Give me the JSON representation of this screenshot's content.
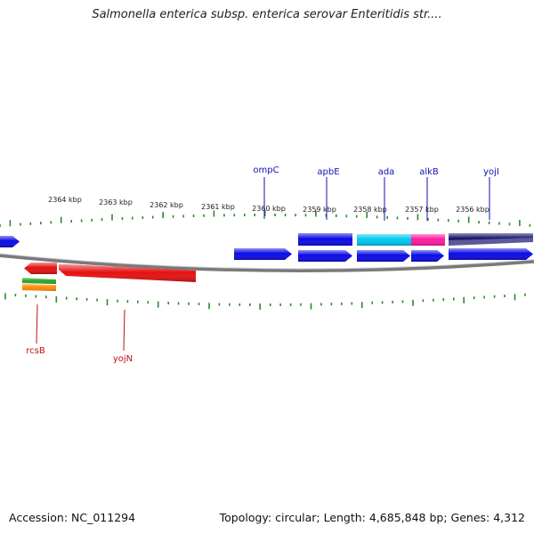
{
  "title": "Salmonella enterica subsp. enterica serovar Enteritidis str....",
  "footer": {
    "accession": "Accession: NC_011294",
    "topology": "Topology: circular; Length: 4,685,848 bp; Genes: 4,312"
  },
  "colors": {
    "backbone": "#7a7a7a",
    "tick": "#2a8a2a",
    "forward_label": "#1010b0",
    "reverse_label": "#c01010"
  },
  "map": {
    "kbp_labels": [
      "2364 kbp",
      "2363 kbp",
      "2362 kbp",
      "2361 kbp",
      "2360 kbp",
      "2359 kbp",
      "2358 kbp",
      "2357 kbp",
      "2356 kbp"
    ],
    "genes_forward": [
      {
        "label": "ompC",
        "color": "#0a0ae6"
      },
      {
        "label": "apbE",
        "color": "#0a0ae6"
      },
      {
        "label": "ada",
        "color": "#0a0ae6"
      },
      {
        "label": "alkB",
        "color": "#0a0ae6"
      },
      {
        "label": "yojI",
        "color": "#0a0ae6"
      }
    ],
    "genes_reverse": [
      {
        "label": "rcsB",
        "color": "#e61010"
      },
      {
        "label": "yojN",
        "color": "#e61010"
      }
    ],
    "features": [
      {
        "color": "#00c8f0"
      },
      {
        "color": "#ff1aa0"
      },
      {
        "color": "#141466"
      },
      {
        "color": "#2aa82a"
      },
      {
        "color": "#ff8c00"
      }
    ]
  }
}
